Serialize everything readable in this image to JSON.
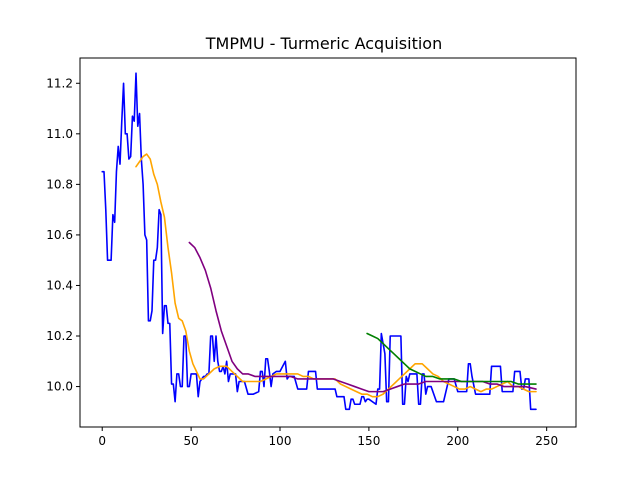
{
  "chart_data": {
    "type": "line",
    "title": "TMPMU - Turmeric Acquisition",
    "xlabel": "",
    "ylabel": "",
    "xlim": [
      -12.5,
      266.5
    ],
    "ylim": [
      9.84,
      11.3
    ],
    "xticks": [
      0,
      50,
      100,
      150,
      200,
      250
    ],
    "yticks": [
      10.0,
      10.2,
      10.4,
      10.6,
      10.8,
      11.0,
      11.2
    ],
    "yticklabels": [
      "10.0",
      "10.2",
      "10.4",
      "10.6",
      "10.8",
      "11.0",
      "11.2"
    ],
    "grid": false,
    "series": [
      {
        "color": "#0000ff",
        "points": [
          [
            0,
            10.85
          ],
          [
            1,
            10.85
          ],
          [
            2,
            10.7
          ],
          [
            3,
            10.5
          ],
          [
            5,
            10.5
          ],
          [
            6,
            10.68
          ],
          [
            7,
            10.65
          ],
          [
            8,
            10.85
          ],
          [
            9,
            10.95
          ],
          [
            10,
            10.88
          ],
          [
            11,
            11.05
          ],
          [
            12,
            11.2
          ],
          [
            13,
            11.0
          ],
          [
            14,
            11.0
          ],
          [
            15,
            10.9
          ],
          [
            16,
            10.91
          ],
          [
            17,
            11.07
          ],
          [
            18,
            11.05
          ],
          [
            19,
            11.24
          ],
          [
            20,
            11.03
          ],
          [
            21,
            11.08
          ],
          [
            22,
            10.9
          ],
          [
            23,
            10.8
          ],
          [
            24,
            10.6
          ],
          [
            25,
            10.58
          ],
          [
            26,
            10.26
          ],
          [
            27,
            10.26
          ],
          [
            28,
            10.3
          ],
          [
            29,
            10.5
          ],
          [
            30,
            10.5
          ],
          [
            31,
            10.55
          ],
          [
            32,
            10.7
          ],
          [
            33,
            10.68
          ],
          [
            34,
            10.21
          ],
          [
            35,
            10.32
          ],
          [
            36,
            10.32
          ],
          [
            37,
            10.25
          ],
          [
            38,
            10.25
          ],
          [
            39,
            10.01
          ],
          [
            40,
            10.01
          ],
          [
            41,
            9.94
          ],
          [
            42,
            10.05
          ],
          [
            43,
            10.05
          ],
          [
            44,
            10.0
          ],
          [
            45,
            10.0
          ],
          [
            46,
            10.2
          ],
          [
            47,
            10.2
          ],
          [
            48,
            10.0
          ],
          [
            49,
            10.0
          ],
          [
            50,
            10.05
          ],
          [
            53,
            10.05
          ],
          [
            54,
            9.96
          ],
          [
            55,
            10.02
          ],
          [
            57,
            10.04
          ],
          [
            58,
            10.04
          ],
          [
            59,
            10.05
          ],
          [
            60,
            10.05
          ],
          [
            61,
            10.2
          ],
          [
            62,
            10.2
          ],
          [
            63,
            10.1
          ],
          [
            64,
            10.2
          ],
          [
            65,
            10.1
          ],
          [
            66,
            10.06
          ],
          [
            67,
            10.06
          ],
          [
            68,
            10.08
          ],
          [
            69,
            10.05
          ],
          [
            70,
            10.1
          ],
          [
            71,
            10.02
          ],
          [
            72,
            10.05
          ],
          [
            75,
            10.05
          ],
          [
            76,
            9.98
          ],
          [
            77,
            10.02
          ],
          [
            80,
            10.02
          ],
          [
            82,
            9.97
          ],
          [
            85,
            9.97
          ],
          [
            88,
            9.98
          ],
          [
            89,
            10.06
          ],
          [
            90,
            10.06
          ],
          [
            91,
            10.0
          ],
          [
            92,
            10.11
          ],
          [
            93,
            10.11
          ],
          [
            94,
            10.06
          ],
          [
            95,
            10.0
          ],
          [
            96,
            10.05
          ],
          [
            98,
            10.06
          ],
          [
            100,
            10.06
          ],
          [
            103,
            10.1
          ],
          [
            104,
            10.03
          ],
          [
            105,
            10.04
          ],
          [
            108,
            10.04
          ],
          [
            110,
            9.99
          ],
          [
            115,
            9.99
          ],
          [
            116,
            10.06
          ],
          [
            120,
            10.06
          ],
          [
            121,
            9.99
          ],
          [
            130,
            9.99
          ],
          [
            131,
            9.99
          ],
          [
            132,
            9.96
          ],
          [
            136,
            9.96
          ],
          [
            137,
            9.91
          ],
          [
            139,
            9.91
          ],
          [
            140,
            9.95
          ],
          [
            141,
            9.95
          ],
          [
            142,
            9.93
          ],
          [
            145,
            9.93
          ],
          [
            146,
            9.96
          ],
          [
            147,
            9.96
          ],
          [
            148,
            9.94
          ],
          [
            149,
            9.95
          ],
          [
            150,
            9.95
          ],
          [
            154,
            9.93
          ],
          [
            155,
            9.99
          ],
          [
            156,
            9.99
          ],
          [
            157,
            10.21
          ],
          [
            158,
            10.17
          ],
          [
            159,
            10.13
          ],
          [
            160,
            9.94
          ],
          [
            161,
            9.94
          ],
          [
            162,
            10.2
          ],
          [
            168,
            10.2
          ],
          [
            169,
            9.93
          ],
          [
            170,
            9.93
          ],
          [
            171,
            10.04
          ],
          [
            172,
            10.02
          ],
          [
            173,
            10.05
          ],
          [
            177,
            10.05
          ],
          [
            178,
            9.93
          ],
          [
            179,
            9.93
          ],
          [
            180,
            10.05
          ],
          [
            181,
            10.05
          ],
          [
            182,
            9.97
          ],
          [
            183,
            10.0
          ],
          [
            185,
            10.0
          ],
          [
            188,
            9.94
          ],
          [
            192,
            9.94
          ],
          [
            195,
            10.03
          ],
          [
            198,
            10.03
          ],
          [
            200,
            9.98
          ],
          [
            205,
            9.98
          ],
          [
            206,
            10.09
          ],
          [
            207,
            10.09
          ],
          [
            208,
            10.04
          ],
          [
            210,
            9.97
          ],
          [
            218,
            9.97
          ],
          [
            219,
            10.08
          ],
          [
            224,
            10.08
          ],
          [
            225,
            9.98
          ],
          [
            226,
            9.98
          ],
          [
            231,
            9.98
          ],
          [
            232,
            10.06
          ],
          [
            235,
            10.06
          ],
          [
            236,
            9.99
          ],
          [
            237,
            9.99
          ],
          [
            238,
            10.03
          ],
          [
            240,
            10.03
          ],
          [
            241,
            9.91
          ],
          [
            244,
            9.91
          ]
        ]
      },
      {
        "color": "#ffa500",
        "points": [
          [
            19,
            10.87
          ],
          [
            21,
            10.89
          ],
          [
            23,
            10.91
          ],
          [
            25,
            10.92
          ],
          [
            27,
            10.9
          ],
          [
            29,
            10.84
          ],
          [
            31,
            10.8
          ],
          [
            33,
            10.73
          ],
          [
            35,
            10.67
          ],
          [
            37,
            10.55
          ],
          [
            39,
            10.45
          ],
          [
            41,
            10.33
          ],
          [
            43,
            10.27
          ],
          [
            45,
            10.26
          ],
          [
            47,
            10.22
          ],
          [
            49,
            10.14
          ],
          [
            51,
            10.09
          ],
          [
            53,
            10.06
          ],
          [
            55,
            10.03
          ],
          [
            57,
            10.03
          ],
          [
            60,
            10.05
          ],
          [
            63,
            10.07
          ],
          [
            66,
            10.08
          ],
          [
            70,
            10.08
          ],
          [
            73,
            10.06
          ],
          [
            76,
            10.04
          ],
          [
            79,
            10.02
          ],
          [
            82,
            10.02
          ],
          [
            86,
            10.02
          ],
          [
            89,
            10.02
          ],
          [
            92,
            10.03
          ],
          [
            95,
            10.04
          ],
          [
            98,
            10.05
          ],
          [
            101,
            10.05
          ],
          [
            104,
            10.05
          ],
          [
            107,
            10.05
          ],
          [
            110,
            10.05
          ],
          [
            113,
            10.04
          ],
          [
            116,
            10.04
          ],
          [
            119,
            10.03
          ],
          [
            122,
            10.03
          ],
          [
            125,
            10.03
          ],
          [
            128,
            10.03
          ],
          [
            131,
            10.03
          ],
          [
            134,
            10.01
          ],
          [
            137,
            10.0
          ],
          [
            140,
            9.99
          ],
          [
            143,
            9.98
          ],
          [
            146,
            9.97
          ],
          [
            149,
            9.97
          ],
          [
            152,
            9.96
          ],
          [
            155,
            9.96
          ],
          [
            158,
            9.97
          ],
          [
            161,
            9.99
          ],
          [
            164,
            10.01
          ],
          [
            167,
            10.03
          ],
          [
            170,
            10.05
          ],
          [
            173,
            10.07
          ],
          [
            176,
            10.09
          ],
          [
            180,
            10.09
          ],
          [
            183,
            10.07
          ],
          [
            186,
            10.05
          ],
          [
            189,
            10.04
          ],
          [
            192,
            10.02
          ],
          [
            195,
            10.01
          ],
          [
            198,
            10.0
          ],
          [
            201,
            9.99
          ],
          [
            204,
            9.99
          ],
          [
            207,
            10.0
          ],
          [
            210,
            9.99
          ],
          [
            213,
            9.98
          ],
          [
            216,
            9.99
          ],
          [
            219,
            9.99
          ],
          [
            222,
            10.0
          ],
          [
            225,
            10.01
          ],
          [
            228,
            10.02
          ],
          [
            231,
            10.0
          ],
          [
            234,
            10.0
          ],
          [
            237,
            9.99
          ],
          [
            240,
            9.98
          ],
          [
            244,
            9.98
          ]
        ]
      },
      {
        "color": "#800080",
        "points": [
          [
            49,
            10.57
          ],
          [
            52,
            10.55
          ],
          [
            55,
            10.51
          ],
          [
            58,
            10.46
          ],
          [
            61,
            10.39
          ],
          [
            64,
            10.3
          ],
          [
            67,
            10.22
          ],
          [
            70,
            10.16
          ],
          [
            73,
            10.1
          ],
          [
            76,
            10.07
          ],
          [
            79,
            10.05
          ],
          [
            82,
            10.05
          ],
          [
            86,
            10.04
          ],
          [
            90,
            10.04
          ],
          [
            94,
            10.04
          ],
          [
            98,
            10.04
          ],
          [
            102,
            10.04
          ],
          [
            106,
            10.04
          ],
          [
            110,
            10.03
          ],
          [
            114,
            10.03
          ],
          [
            118,
            10.03
          ],
          [
            122,
            10.03
          ],
          [
            126,
            10.03
          ],
          [
            130,
            10.03
          ],
          [
            134,
            10.02
          ],
          [
            138,
            10.01
          ],
          [
            142,
            10.0
          ],
          [
            146,
            9.99
          ],
          [
            150,
            9.98
          ],
          [
            154,
            9.98
          ],
          [
            158,
            9.98
          ],
          [
            162,
            9.99
          ],
          [
            166,
            10.0
          ],
          [
            170,
            10.01
          ],
          [
            174,
            10.01
          ],
          [
            178,
            10.01
          ],
          [
            182,
            10.02
          ],
          [
            186,
            10.02
          ],
          [
            190,
            10.02
          ],
          [
            194,
            10.02
          ],
          [
            198,
            10.02
          ],
          [
            202,
            10.02
          ],
          [
            206,
            10.02
          ],
          [
            210,
            10.02
          ],
          [
            214,
            10.02
          ],
          [
            218,
            10.01
          ],
          [
            222,
            10.01
          ],
          [
            226,
            10.0
          ],
          [
            230,
            10.0
          ],
          [
            234,
            10.0
          ],
          [
            238,
            10.0
          ],
          [
            244,
            9.99
          ]
        ]
      },
      {
        "color": "#008000",
        "points": [
          [
            149,
            10.21
          ],
          [
            152,
            10.2
          ],
          [
            155,
            10.19
          ],
          [
            158,
            10.17
          ],
          [
            161,
            10.15
          ],
          [
            164,
            10.13
          ],
          [
            167,
            10.11
          ],
          [
            170,
            10.09
          ],
          [
            173,
            10.07
          ],
          [
            176,
            10.06
          ],
          [
            179,
            10.05
          ],
          [
            182,
            10.04
          ],
          [
            186,
            10.04
          ],
          [
            190,
            10.03
          ],
          [
            194,
            10.03
          ],
          [
            198,
            10.03
          ],
          [
            202,
            10.02
          ],
          [
            206,
            10.02
          ],
          [
            210,
            10.02
          ],
          [
            214,
            10.02
          ],
          [
            218,
            10.02
          ],
          [
            222,
            10.02
          ],
          [
            226,
            10.02
          ],
          [
            230,
            10.02
          ],
          [
            234,
            10.01
          ],
          [
            238,
            10.01
          ],
          [
            244,
            10.01
          ]
        ]
      }
    ]
  }
}
